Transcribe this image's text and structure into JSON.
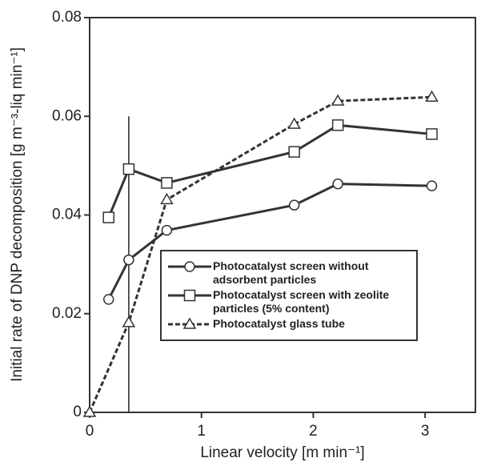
{
  "chart_data": {
    "type": "line",
    "xlabel": "Linear velocity [m min⁻¹]",
    "ylabel": "Initial rate of DNP decomposition [g m⁻³-liq min⁻¹]",
    "xlim": [
      0,
      3.45
    ],
    "ylim": [
      0,
      0.08
    ],
    "xticks": [
      0,
      1,
      2,
      3
    ],
    "yticks": [
      0,
      0.02,
      0.04,
      0.06,
      0.08
    ],
    "reference_line": {
      "x": 0.35,
      "y": [
        0,
        0.06
      ]
    },
    "series": [
      {
        "name": "Photocatalyst screen without adsorbent particles",
        "color": "#333333",
        "marker": "circle",
        "dashed": false,
        "x": [
          0.17,
          0.35,
          0.69,
          1.83,
          2.22,
          3.06
        ],
        "values": [
          0.0229,
          0.0309,
          0.0369,
          0.042,
          0.0463,
          0.0459
        ]
      },
      {
        "name": "Photocatalyst screen with zeolite particles (5% content)",
        "color": "#333333",
        "marker": "square",
        "dashed": false,
        "x": [
          0.17,
          0.35,
          0.69,
          1.83,
          2.22,
          3.06
        ],
        "values": [
          0.0395,
          0.0493,
          0.0465,
          0.0528,
          0.0582,
          0.0564
        ]
      },
      {
        "name": "Photocatalyst glass tube",
        "color": "#333333",
        "marker": "triangle",
        "dashed": true,
        "x": [
          0,
          0.35,
          0.69,
          1.83,
          2.22,
          3.06
        ],
        "values": [
          0,
          0.0182,
          0.0431,
          0.0584,
          0.0631,
          0.0639
        ]
      }
    ]
  }
}
